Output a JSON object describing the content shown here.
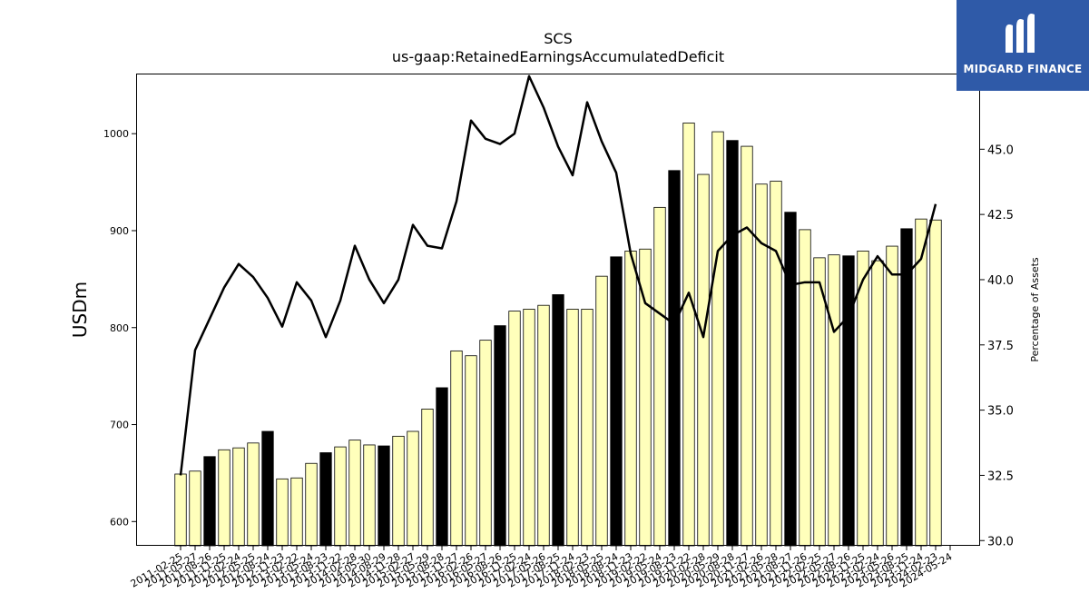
{
  "title": "SCS",
  "subtitle": "us-gaap:RetainedEarningsAccumulatedDeficit",
  "logo": {
    "text": "MIDGARD FINANCE",
    "background": "#2f5aa8"
  },
  "chart_data": {
    "type": "bar",
    "title": "SCS",
    "subtitle": "us-gaap:RetainedEarningsAccumulatedDeficit",
    "ylabel": "USDm",
    "ylabel_right": "Percentage of Assets",
    "ylim": [
      575,
      1062
    ],
    "ylim_right": [
      29.8,
      47.9
    ],
    "yticks": [
      600,
      700,
      800,
      900,
      1000
    ],
    "yticks_right": [
      30.0,
      32.5,
      35.0,
      37.5,
      40.0,
      42.5,
      45.0
    ],
    "grid": false,
    "colors": {
      "bar_fill": "#ffffbb",
      "bar_highlight": "#000000",
      "bar_edge": "#000000",
      "line": "#000000"
    },
    "categories": [
      "2011-02-25",
      "2011-05-27",
      "2011-08-26",
      "2011-11-25",
      "2012-02-24",
      "2012-05-25",
      "2012-08-24",
      "2012-11-23",
      "2013-02-22",
      "2013-05-24",
      "2013-08-23",
      "2013-11-22",
      "2014-02-28",
      "2014-05-30",
      "2014-08-29",
      "2014-11-28",
      "2015-02-27",
      "2015-05-29",
      "2015-08-28",
      "2015-11-27",
      "2016-02-26",
      "2016-05-27",
      "2016-08-26",
      "2016-11-25",
      "2017-02-24",
      "2017-05-26",
      "2017-08-25",
      "2017-11-24",
      "2018-02-23",
      "2018-05-25",
      "2018-08-24",
      "2018-11-23",
      "2019-02-22",
      "2019-05-24",
      "2019-08-23",
      "2019-11-22",
      "2020-02-28",
      "2020-05-29",
      "2020-08-28",
      "2020-11-27",
      "2021-02-26",
      "2021-05-28",
      "2021-08-27",
      "2021-11-26",
      "2022-02-25",
      "2022-05-27",
      "2022-08-26",
      "2022-11-25",
      "2023-02-24",
      "2023-05-26",
      "2023-08-25",
      "2023-11-24",
      "2024-02-23",
      "2024-05-24"
    ],
    "highlight": [
      false,
      false,
      true,
      false,
      false,
      false,
      true,
      false,
      false,
      false,
      true,
      false,
      false,
      false,
      true,
      false,
      false,
      false,
      true,
      false,
      false,
      false,
      true,
      false,
      false,
      false,
      true,
      false,
      false,
      false,
      true,
      false,
      false,
      false,
      true,
      false,
      false,
      false,
      true,
      false,
      false,
      false,
      true,
      false,
      false,
      false,
      true,
      false,
      false,
      false,
      true,
      false,
      false,
      false
    ],
    "series": [
      {
        "name": "",
        "kind": "bar",
        "axis": "left",
        "values": [
          649,
          652,
          667,
          674,
          676,
          681,
          693,
          644,
          645,
          660,
          671,
          677,
          684,
          679,
          678,
          688,
          693,
          716,
          738,
          776,
          771,
          787,
          802,
          817,
          819,
          823,
          834,
          819,
          819,
          853,
          873,
          879,
          881,
          924,
          962,
          1011,
          958,
          1002,
          993,
          987,
          948,
          951,
          919,
          901,
          872,
          875,
          874,
          879,
          869,
          884,
          902,
          912,
          911,
          null
        ]
      },
      {
        "name": "",
        "kind": "line",
        "axis": "right",
        "values": [
          32.5,
          37.3,
          38.5,
          39.7,
          40.6,
          40.1,
          39.3,
          38.2,
          39.9,
          39.2,
          37.8,
          39.2,
          41.3,
          40.0,
          39.1,
          40.0,
          42.1,
          41.3,
          41.2,
          43.0,
          46.1,
          45.4,
          45.2,
          45.6,
          47.8,
          46.6,
          45.1,
          44.0,
          46.8,
          45.3,
          44.1,
          41.0,
          39.1,
          38.7,
          38.3,
          39.5,
          37.8,
          41.1,
          41.7,
          42.0,
          41.4,
          41.1,
          39.8,
          39.9,
          39.9,
          38.0,
          38.6,
          40.0,
          40.9,
          40.2,
          40.2,
          40.8,
          42.9,
          null
        ]
      }
    ]
  }
}
